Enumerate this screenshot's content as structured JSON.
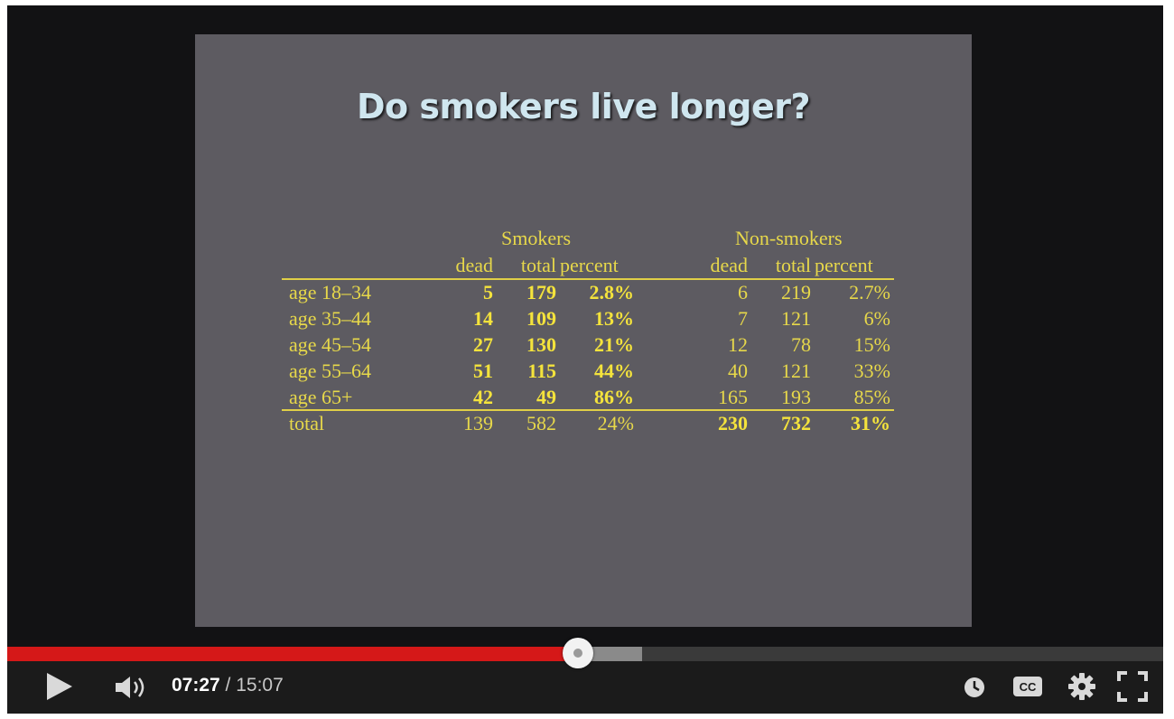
{
  "player": {
    "current_time": "07:27",
    "separator": " / ",
    "duration": "15:07",
    "played_fraction": 0.494,
    "buffered_fraction": 0.549,
    "colors": {
      "progress_played": "#d51818",
      "progress_buffered": "#8a8a8a",
      "slide_background": "#5d5b61",
      "table_text": "#e7d84a"
    },
    "icons": [
      "play-icon",
      "volume-icon",
      "watch-later-icon",
      "captions-icon",
      "settings-gear-icon",
      "fullscreen-icon"
    ],
    "captions_label": "CC"
  },
  "slide": {
    "title": "Do smokers live longer?",
    "groups": {
      "smokers": "Smokers",
      "nonsmokers": "Non-smokers"
    },
    "columns": [
      "dead",
      "total",
      "percent",
      "dead",
      "total",
      "percent"
    ],
    "rows": [
      {
        "label": "age 18–34",
        "s": [
          "5",
          "179",
          "2.8%"
        ],
        "n": [
          "6",
          "219",
          "2.7%"
        ]
      },
      {
        "label": "age 35–44",
        "s": [
          "14",
          "109",
          "13%"
        ],
        "n": [
          "7",
          "121",
          "6%"
        ]
      },
      {
        "label": "age 45–54",
        "s": [
          "27",
          "130",
          "21%"
        ],
        "n": [
          "12",
          "78",
          "15%"
        ]
      },
      {
        "label": "age 55–64",
        "s": [
          "51",
          "115",
          "44%"
        ],
        "n": [
          "40",
          "121",
          "33%"
        ]
      },
      {
        "label": "age 65+",
        "s": [
          "42",
          "49",
          "86%"
        ],
        "n": [
          "165",
          "193",
          "85%"
        ]
      }
    ],
    "total": {
      "label": "total",
      "s": [
        "139",
        "582",
        "24%"
      ],
      "n": [
        "230",
        "732",
        "31%"
      ]
    }
  }
}
